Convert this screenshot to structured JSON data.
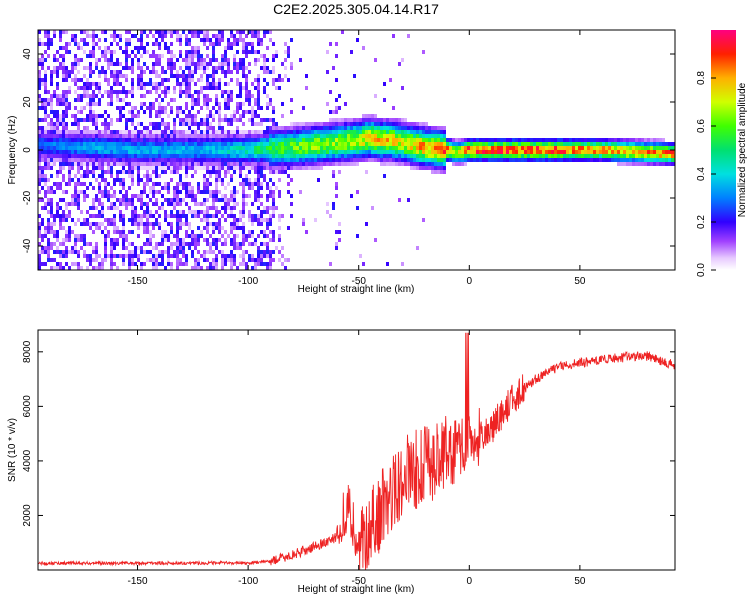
{
  "title": "C2E2.2025.305.04.14.R17",
  "chart_data": [
    {
      "type": "heatmap",
      "xlabel": "Height of straight line (km)",
      "ylabel": "Frequency (Hz)",
      "xlim": [
        -195,
        93
      ],
      "ylim": [
        -50,
        50
      ],
      "xticks": [
        -150,
        -100,
        -50,
        0,
        50
      ],
      "xtick_labels": [
        "-150",
        "-100",
        "-50",
        "0",
        "50"
      ],
      "yticks": [
        -40,
        -20,
        0,
        20,
        40
      ],
      "ytick_labels": [
        "-40",
        "-20",
        "0",
        "20",
        "40"
      ],
      "colorbar": {
        "label": "Normalized spectral amplitude",
        "range": [
          0,
          1
        ],
        "ticks": [
          0.0,
          0.2,
          0.4,
          0.6,
          0.8
        ],
        "tick_labels": [
          "0.0",
          "0.2",
          "0.4",
          "0.6",
          "0.8"
        ]
      },
      "ridge": {
        "x": [
          -195,
          -170,
          -150,
          -120,
          -100,
          -90,
          -80,
          -70,
          -60,
          -50,
          -45,
          -40,
          -35,
          -30,
          -25,
          -20,
          -15,
          -10,
          -5,
          0,
          20,
          40,
          60,
          80,
          93
        ],
        "freq": [
          2,
          1,
          0,
          0,
          0,
          0.5,
          1,
          2,
          3,
          4,
          5,
          4,
          4,
          3,
          2,
          1,
          0.5,
          0,
          -1,
          0,
          0,
          0,
          0,
          -1,
          -1.5
        ],
        "amplitude": [
          0.28,
          0.35,
          0.35,
          0.35,
          0.45,
          0.55,
          0.6,
          0.65,
          0.65,
          0.7,
          0.75,
          0.75,
          0.75,
          0.7,
          0.75,
          0.8,
          0.8,
          0.85,
          0.7,
          0.9,
          0.9,
          0.9,
          0.8,
          0.8,
          0.85
        ]
      }
    },
    {
      "type": "line",
      "xlabel": "Height of straight line (km)",
      "ylabel": "SNR (10 * v/v)",
      "xlim": [
        -195,
        93
      ],
      "ylim": [
        0,
        8800
      ],
      "xticks": [
        -150,
        -100,
        -50,
        0,
        50
      ],
      "xtick_labels": [
        "-150",
        "-100",
        "-50",
        "0",
        "50"
      ],
      "yticks": [
        2000,
        4000,
        6000,
        8000
      ],
      "ytick_labels": [
        "2000",
        "4000",
        "6000",
        "8000"
      ],
      "series": [
        {
          "name": "SNR",
          "color": "#ee2222",
          "x": [
            -195,
            -150,
            -100,
            -90,
            -80,
            -70,
            -60,
            -55,
            -50,
            -45,
            -40,
            -35,
            -30,
            -25,
            -20,
            -15,
            -10,
            -5,
            0,
            10,
            20,
            30,
            40,
            50,
            60,
            70,
            80,
            93
          ],
          "values": [
            250,
            250,
            260,
            320,
            550,
            850,
            1200,
            1800,
            600,
            1600,
            2200,
            2800,
            3400,
            3700,
            3800,
            4100,
            4300,
            4300,
            4500,
            5200,
            6300,
            7000,
            7450,
            7600,
            7700,
            7800,
            7850,
            7500
          ]
        }
      ]
    }
  ]
}
